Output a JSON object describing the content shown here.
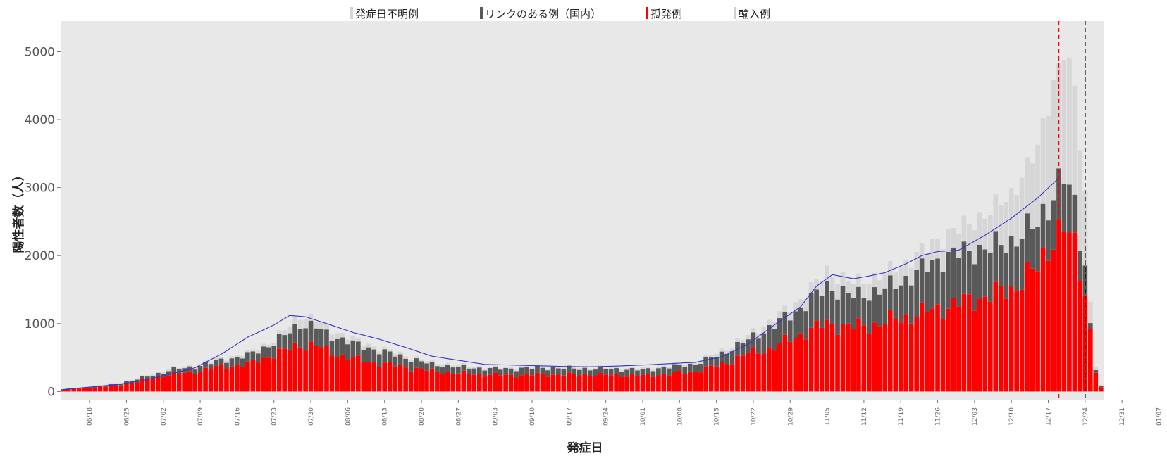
{
  "chart_data": {
    "type": "bar",
    "stacked": true,
    "xlabel": "発症日",
    "ylabel": "陽性者数（人）",
    "ylim": [
      -120,
      5450
    ],
    "yticks": [
      0,
      1000,
      2000,
      3000,
      4000,
      5000
    ],
    "grid": false,
    "legend_position": "top",
    "background_color": "#e8e8e8",
    "tick_labels": [
      "06/18",
      "06/25",
      "07/02",
      "07/09",
      "07/16",
      "07/23",
      "07/30",
      "08/06",
      "08/13",
      "08/20",
      "08/27",
      "09/03",
      "09/10",
      "09/17",
      "09/24",
      "10/01",
      "10/08",
      "10/15",
      "10/22",
      "10/29",
      "11/05",
      "11/12",
      "11/19",
      "11/26",
      "12/03",
      "12/10",
      "12/17",
      "12/24",
      "12/31",
      "01/07"
    ],
    "start_date": "06/13",
    "series": [
      {
        "name": "孤発例",
        "color": "#ff0000",
        "anchors": [
          [
            0,
            25
          ],
          [
            5,
            55
          ],
          [
            10,
            90
          ],
          [
            15,
            160
          ],
          [
            20,
            250
          ],
          [
            25,
            290
          ],
          [
            30,
            370
          ],
          [
            35,
            400
          ],
          [
            40,
            550
          ],
          [
            42,
            600
          ],
          [
            45,
            700
          ],
          [
            48,
            680
          ],
          [
            50,
            600
          ],
          [
            55,
            480
          ],
          [
            60,
            420
          ],
          [
            65,
            360
          ],
          [
            70,
            300
          ],
          [
            75,
            270
          ],
          [
            80,
            250
          ],
          [
            85,
            240
          ],
          [
            90,
            250
          ],
          [
            95,
            250
          ],
          [
            100,
            245
          ],
          [
            105,
            240
          ],
          [
            110,
            230
          ],
          [
            115,
            260
          ],
          [
            120,
            300
          ],
          [
            125,
            400
          ],
          [
            130,
            560
          ],
          [
            135,
            650
          ],
          [
            140,
            850
          ],
          [
            145,
            1000
          ],
          [
            150,
            950
          ],
          [
            155,
            1000
          ],
          [
            160,
            1100
          ],
          [
            165,
            1200
          ],
          [
            170,
            1300
          ],
          [
            175,
            1400
          ],
          [
            180,
            1500
          ],
          [
            182,
            1650
          ],
          [
            185,
            1800
          ],
          [
            188,
            2300
          ],
          [
            190,
            2400
          ],
          [
            192,
            2100
          ],
          [
            194,
            1500
          ],
          [
            195,
            900
          ],
          [
            196,
            300
          ],
          [
            197,
            60
          ]
        ]
      },
      {
        "name": "リンクのある例（国内）",
        "color": "#595959",
        "anchors": [
          [
            0,
            8
          ],
          [
            10,
            20
          ],
          [
            20,
            60
          ],
          [
            30,
            90
          ],
          [
            40,
            170
          ],
          [
            45,
            300
          ],
          [
            50,
            250
          ],
          [
            55,
            230
          ],
          [
            60,
            180
          ],
          [
            70,
            100
          ],
          [
            80,
            90
          ],
          [
            90,
            100
          ],
          [
            100,
            90
          ],
          [
            110,
            90
          ],
          [
            120,
            110
          ],
          [
            130,
            200
          ],
          [
            135,
            330
          ],
          [
            140,
            380
          ],
          [
            145,
            550
          ],
          [
            150,
            450
          ],
          [
            155,
            480
          ],
          [
            160,
            550
          ],
          [
            165,
            700
          ],
          [
            170,
            750
          ],
          [
            175,
            700
          ],
          [
            180,
            700
          ],
          [
            185,
            650
          ],
          [
            188,
            650
          ],
          [
            190,
            750
          ],
          [
            192,
            600
          ],
          [
            194,
            400
          ],
          [
            195,
            80
          ],
          [
            196,
            40
          ],
          [
            197,
            15
          ]
        ]
      },
      {
        "name": "発症日不明例",
        "color": "#d6d6d6",
        "anchors": [
          [
            0,
            5
          ],
          [
            20,
            20
          ],
          [
            40,
            40
          ],
          [
            45,
            130
          ],
          [
            50,
            90
          ],
          [
            60,
            40
          ],
          [
            80,
            20
          ],
          [
            100,
            20
          ],
          [
            120,
            30
          ],
          [
            130,
            60
          ],
          [
            140,
            130
          ],
          [
            145,
            220
          ],
          [
            150,
            200
          ],
          [
            160,
            250
          ],
          [
            165,
            280
          ],
          [
            170,
            350
          ],
          [
            175,
            500
          ],
          [
            180,
            700
          ],
          [
            185,
            1100
          ],
          [
            188,
            1650
          ],
          [
            190,
            1900
          ],
          [
            192,
            1700
          ],
          [
            194,
            1000
          ],
          [
            195,
            350
          ],
          [
            196,
            40
          ],
          [
            197,
            20
          ]
        ]
      },
      {
        "name": "輸入例",
        "color": "#ececec",
        "anchors": [
          [
            0,
            1
          ],
          [
            197,
            1
          ]
        ]
      }
    ],
    "moving_average": {
      "color": "#3333cc",
      "anchors": [
        [
          0,
          30
        ],
        [
          10,
          100
        ],
        [
          15,
          160
        ],
        [
          20,
          250
        ],
        [
          25,
          350
        ],
        [
          30,
          550
        ],
        [
          35,
          800
        ],
        [
          40,
          980
        ],
        [
          43,
          1120
        ],
        [
          46,
          1100
        ],
        [
          50,
          1000
        ],
        [
          55,
          870
        ],
        [
          60,
          770
        ],
        [
          65,
          650
        ],
        [
          70,
          520
        ],
        [
          75,
          460
        ],
        [
          80,
          400
        ],
        [
          85,
          390
        ],
        [
          90,
          380
        ],
        [
          95,
          370
        ],
        [
          100,
          365
        ],
        [
          105,
          375
        ],
        [
          110,
          390
        ],
        [
          115,
          410
        ],
        [
          120,
          430
        ],
        [
          125,
          510
        ],
        [
          130,
          700
        ],
        [
          135,
          980
        ],
        [
          140,
          1250
        ],
        [
          143,
          1550
        ],
        [
          146,
          1720
        ],
        [
          150,
          1660
        ],
        [
          153,
          1700
        ],
        [
          156,
          1750
        ],
        [
          160,
          1880
        ],
        [
          163,
          2000
        ],
        [
          166,
          2060
        ],
        [
          170,
          2080
        ],
        [
          175,
          2300
        ],
        [
          180,
          2550
        ],
        [
          185,
          2850
        ],
        [
          189,
          3140
        ]
      ]
    },
    "markers": [
      {
        "x": 189.5,
        "color": "#ff0000",
        "style": "dashed"
      },
      {
        "x": 194.5,
        "color": "#000000",
        "style": "dashed"
      }
    ],
    "n_days": 198
  }
}
